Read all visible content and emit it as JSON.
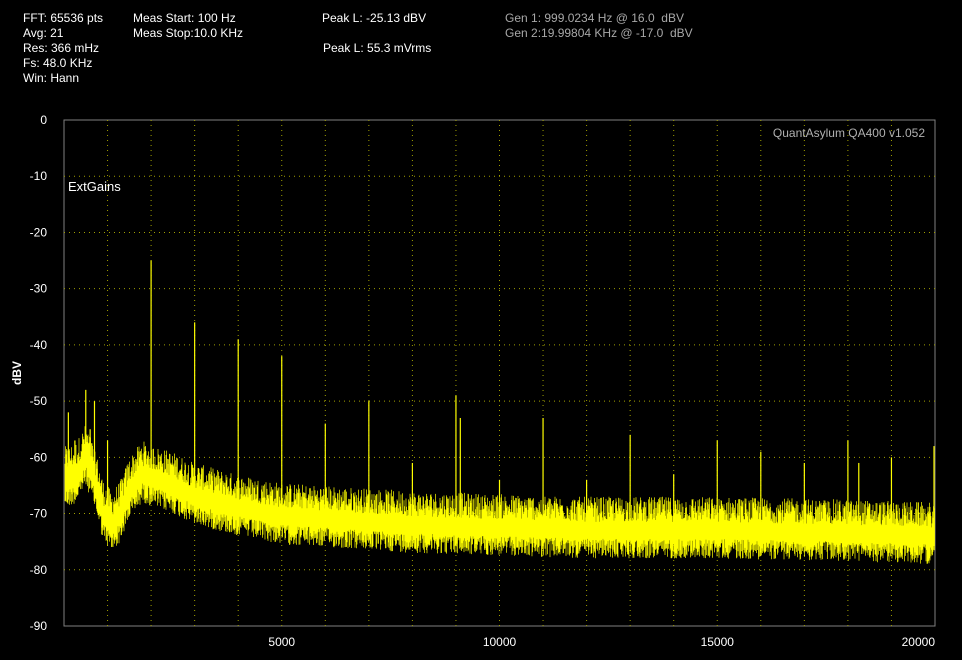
{
  "header": {
    "fft": "FFT: 65536 pts",
    "avg": "Avg: 21",
    "res": "Res: 366 mHz",
    "fs": "Fs: 48.0 KHz",
    "win": "Win: Hann",
    "meas_start": "Meas Start: 100 Hz",
    "meas_stop": "Meas Stop:10.0 KHz",
    "peak_dbv": "Peak L: -25.13 dBV",
    "peak_rms": "Peak L: 55.3 mVrms",
    "gen1": "Gen 1: 999.0234 Hz @ 16.0  dBV",
    "gen2": "Gen 2:19.99804 KHz @ -17.0  dBV"
  },
  "colors": {
    "background": "#000000",
    "trace": "#ffff00",
    "grid": "#a0a000",
    "text": "#ffffff",
    "gen_text": "#a8a8a8",
    "watermark": "#b0b0b0"
  },
  "chart_data": {
    "type": "line",
    "title": "",
    "xlabel": "",
    "ylabel": "dBV",
    "watermark": "QuantAsylum QA400 v1.052",
    "annotation": "ExtGains",
    "xlim": [
      0,
      20000
    ],
    "ylim": [
      -90,
      0
    ],
    "x_ticks": [
      5000,
      10000,
      15000,
      20000
    ],
    "y_ticks": [
      0,
      -10,
      -20,
      -30,
      -40,
      -50,
      -60,
      -70,
      -80,
      -90
    ],
    "grid": true,
    "noise_floor": {
      "x": [
        0,
        100,
        300,
        500,
        700,
        900,
        1100,
        1300,
        1500,
        1800,
        2100,
        2500,
        3000,
        4000,
        5000,
        6000,
        7000,
        8000,
        10000,
        12000,
        15000,
        18000,
        20000
      ],
      "y": [
        -64,
        -64,
        -63,
        -60,
        -64,
        -70,
        -72,
        -70,
        -66,
        -63,
        -64,
        -65,
        -67,
        -69,
        -70.5,
        -71,
        -71.5,
        -72,
        -72.5,
        -73,
        -73,
        -73.5,
        -74
      ]
    },
    "spurs": {
      "x": [
        100,
        250,
        500,
        600,
        700,
        1000,
        2000,
        3000,
        4000,
        5000,
        6000,
        7000,
        8000,
        9000,
        9100,
        10000,
        11000,
        12000,
        13000,
        14000,
        15000,
        16000,
        17000,
        18000,
        18250,
        19000,
        20000
      ],
      "y": [
        -52,
        -57,
        -48,
        -55,
        -50,
        -57,
        -25,
        -36,
        -39,
        -42,
        -54,
        -50,
        -61,
        -49,
        -53,
        -64,
        -53,
        -64,
        -56,
        -63,
        -57,
        -59,
        -61,
        -57,
        -61,
        -60,
        -58
      ]
    }
  }
}
